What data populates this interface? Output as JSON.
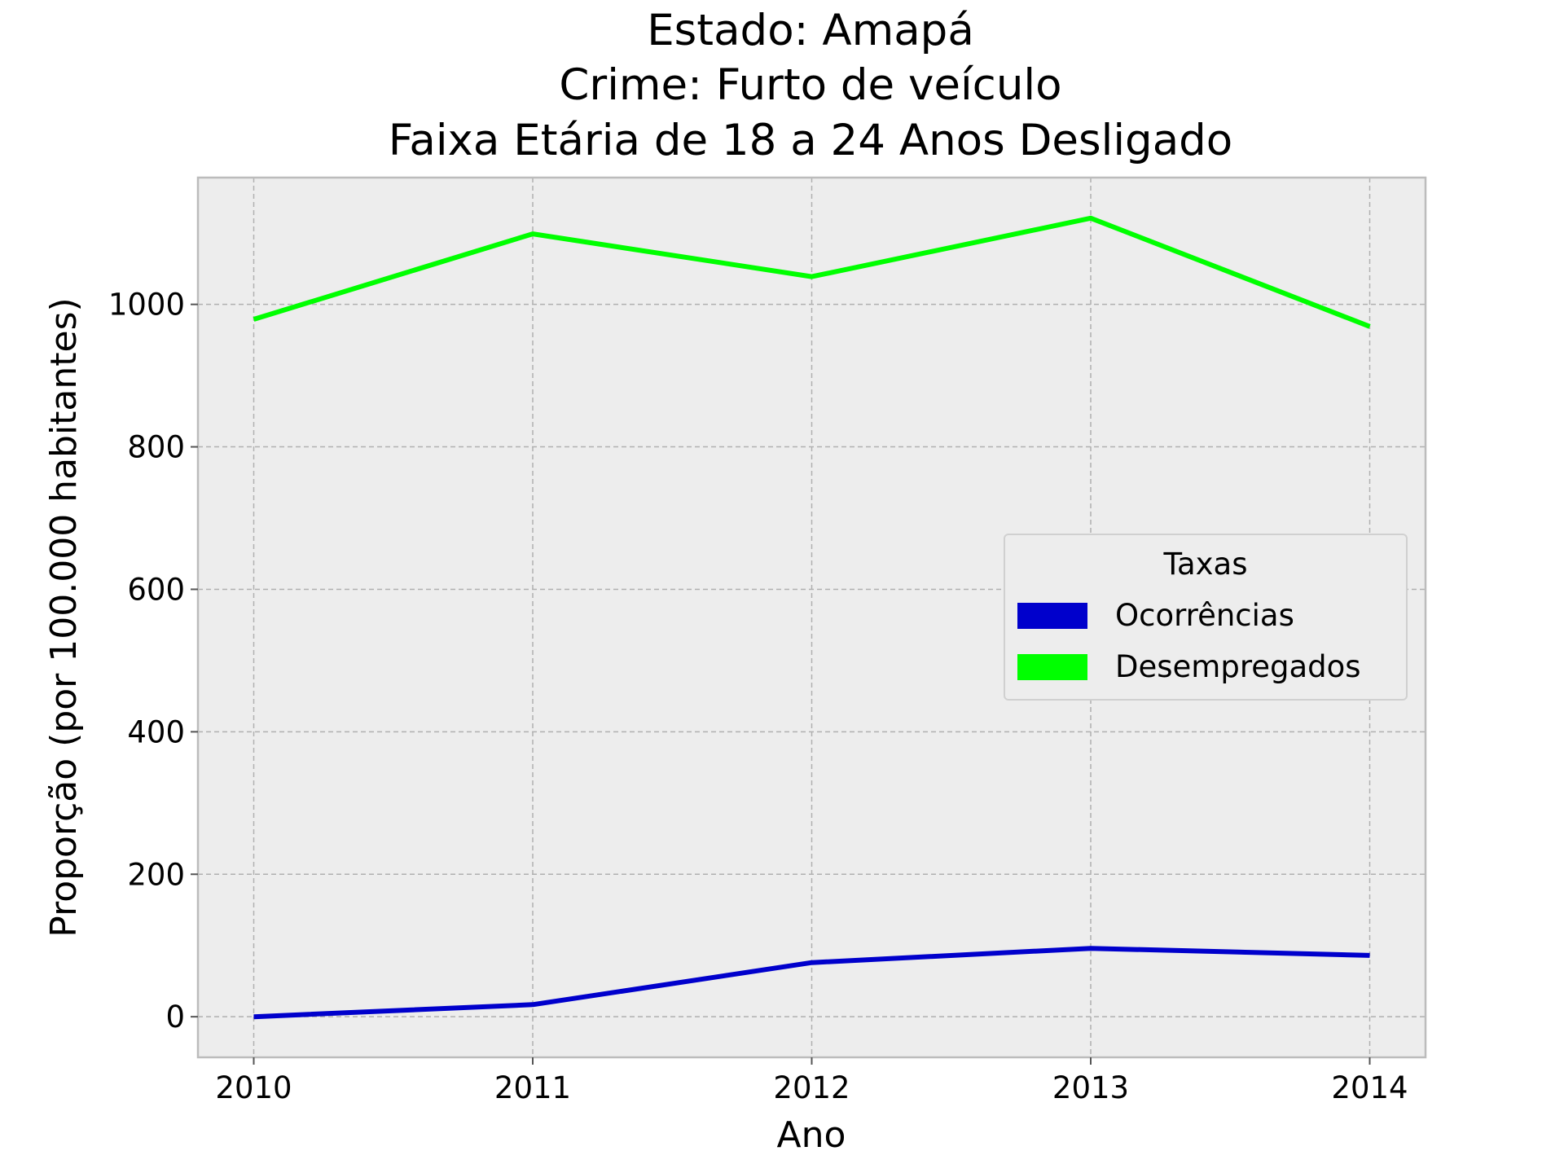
{
  "chart_data": {
    "type": "line",
    "title_lines": [
      "Estado: Amapá",
      "Crime: Furto de veículo",
      "Faixa Etária de 18 a 24 Anos   Desligado"
    ],
    "xlabel": "Ano",
    "ylabel": "Proporção (por 100.000 habitantes)",
    "x": [
      2010,
      2011,
      2012,
      2013,
      2014
    ],
    "x_tick_labels": [
      "2010",
      "2011",
      "2012",
      "2013",
      "2014"
    ],
    "y_ticks": [
      0,
      200,
      400,
      600,
      800,
      1000
    ],
    "y_tick_labels": [
      "0",
      "200",
      "400",
      "600",
      "800",
      "1000"
    ],
    "xlim": [
      2009.8,
      2014.2
    ],
    "ylim": [
      -57,
      1178
    ],
    "grid": true,
    "background_color": "#ededed",
    "legend": {
      "title": "Taxas",
      "placement": "center-right"
    },
    "series": [
      {
        "name": "Ocorrências",
        "color": "#0000cc",
        "values": [
          0,
          17,
          76,
          96,
          86
        ]
      },
      {
        "name": "Desempregados",
        "color": "#00ff00",
        "values": [
          979,
          1099,
          1039,
          1121,
          969
        ]
      }
    ]
  }
}
